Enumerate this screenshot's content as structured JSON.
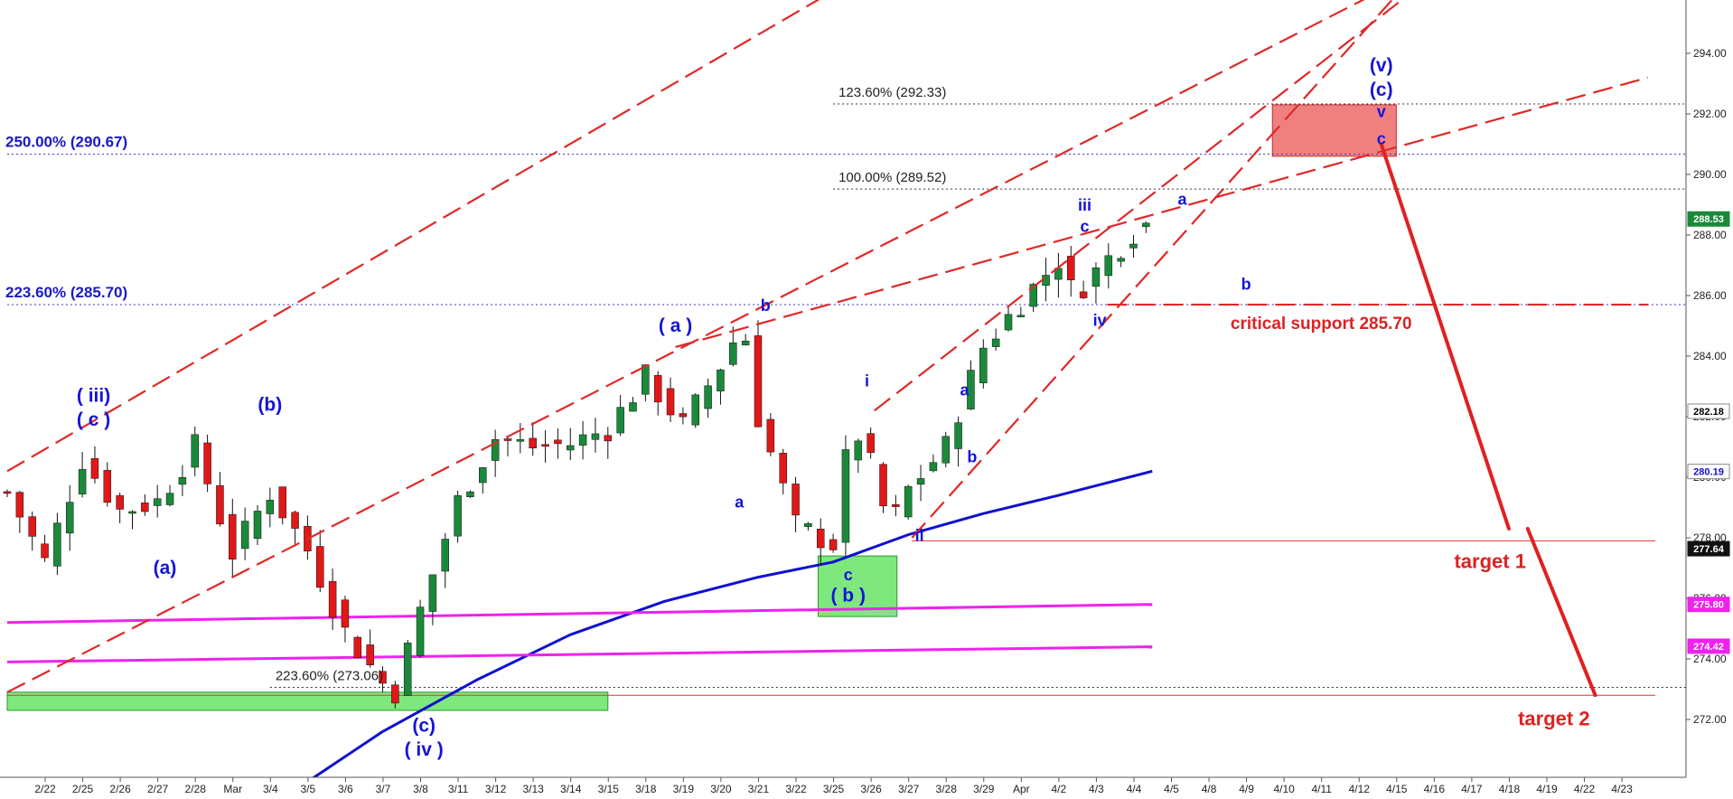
{
  "chart_data": {
    "type": "candlestick",
    "title": "",
    "xlabel": "",
    "ylabel": "",
    "ylim": [
      269.0,
      295.6
    ],
    "y_ticks": [
      272.0,
      274.0,
      276.0,
      278.0,
      280.0,
      282.0,
      284.0,
      286.0,
      288.0,
      290.0,
      292.0,
      294.0
    ],
    "y_tick_labels": [
      "272.00",
      "274.00",
      "276.00",
      "278.00",
      "280.00",
      "282.00",
      "284.00",
      "286.00",
      "288.00",
      "290.00",
      "292.00",
      "294.00"
    ],
    "x_tick_labels": [
      "2/22",
      "2/25",
      "2/26",
      "2/27",
      "2/28",
      "Mar",
      "3/4",
      "3/5",
      "3/6",
      "3/7",
      "3/8",
      "3/11",
      "3/12",
      "3/13",
      "3/14",
      "3/15",
      "3/18",
      "3/19",
      "3/20",
      "3/21",
      "3/22",
      "3/25",
      "3/26",
      "3/27",
      "3/28",
      "3/29",
      "Apr",
      "4/2",
      "4/3",
      "4/4",
      "4/5",
      "4/8",
      "4/9",
      "4/10",
      "4/11",
      "4/12",
      "4/15",
      "4/16",
      "4/17",
      "4/18",
      "4/19",
      "4/22",
      "4/23"
    ],
    "price_path": [
      {
        "x": 0.0,
        "y": 279.5
      },
      {
        "x": 1.0,
        "y": 277.2
      },
      {
        "x": 2.0,
        "y": 280.6
      },
      {
        "x": 3.0,
        "y": 278.9
      },
      {
        "x": 4.0,
        "y": 279.2
      },
      {
        "x": 5.0,
        "y": 281.0
      },
      {
        "x": 6.0,
        "y": 277.5
      },
      {
        "x": 7.0,
        "y": 279.5
      },
      {
        "x": 8.0,
        "y": 277.6
      },
      {
        "x": 9.0,
        "y": 274.9
      },
      {
        "x": 10.0,
        "y": 273.2
      },
      {
        "x": 10.3,
        "y": 272.8
      },
      {
        "x": 11.0,
        "y": 275.6
      },
      {
        "x": 12.0,
        "y": 279.2
      },
      {
        "x": 13.0,
        "y": 281.3
      },
      {
        "x": 14.0,
        "y": 281.0
      },
      {
        "x": 15.0,
        "y": 281.1
      },
      {
        "x": 16.0,
        "y": 281.6
      },
      {
        "x": 17.0,
        "y": 283.3
      },
      {
        "x": 18.0,
        "y": 281.7
      },
      {
        "x": 19.0,
        "y": 283.7
      },
      {
        "x": 19.6,
        "y": 285.1
      },
      {
        "x": 20.0,
        "y": 282.0
      },
      {
        "x": 21.0,
        "y": 278.4
      },
      {
        "x": 22.0,
        "y": 277.8
      },
      {
        "x": 22.5,
        "y": 281.9
      },
      {
        "x": 23.0,
        "y": 280.4
      },
      {
        "x": 23.5,
        "y": 278.3
      },
      {
        "x": 24.0,
        "y": 279.6
      },
      {
        "x": 25.0,
        "y": 281.0
      },
      {
        "x": 25.3,
        "y": 282.1
      },
      {
        "x": 26.0,
        "y": 284.3
      },
      {
        "x": 27.0,
        "y": 285.8
      },
      {
        "x": 28.0,
        "y": 287.2
      },
      {
        "x": 28.4,
        "y": 286.0
      },
      {
        "x": 29.0,
        "y": 286.8
      },
      {
        "x": 30.0,
        "y": 288.1
      },
      {
        "x": 30.5,
        "y": 288.5
      }
    ],
    "series": [
      {
        "name": "",
        "color": "#1010d0",
        "points": [
          {
            "x": 7.1,
            "y": 269.2
          },
          {
            "x": 10.0,
            "y": 271.6
          },
          {
            "x": 12.5,
            "y": 273.3
          },
          {
            "x": 15.0,
            "y": 274.8
          },
          {
            "x": 17.5,
            "y": 275.9
          },
          {
            "x": 20.0,
            "y": 276.7
          },
          {
            "x": 22.0,
            "y": 277.2
          },
          {
            "x": 24.0,
            "y": 278.1
          },
          {
            "x": 26.0,
            "y": 278.8
          },
          {
            "x": 28.0,
            "y": 279.4
          },
          {
            "x": 30.5,
            "y": 280.2
          }
        ]
      },
      {
        "name": "",
        "color": "#ee22ee",
        "points": [
          {
            "x": 0.0,
            "y": 275.2
          },
          {
            "x": 30.5,
            "y": 275.8
          }
        ]
      },
      {
        "name": "",
        "color": "#ee22ee",
        "points": [
          {
            "x": 0.0,
            "y": 273.9
          },
          {
            "x": 30.5,
            "y": 274.4
          }
        ]
      }
    ],
    "price_labels": [
      {
        "value": 288.53,
        "text": "288.53",
        "bg": "#1a8a3a",
        "fg": "#ffffff"
      },
      {
        "value": 282.18,
        "text": "282.18",
        "bg": "#ffffff",
        "fg": "#000000"
      },
      {
        "value": 280.19,
        "text": "280.19",
        "bg": "#ffffff",
        "fg": "#1010d0"
      },
      {
        "value": 277.64,
        "text": "277.64",
        "bg": "#111111",
        "fg": "#ffffff"
      },
      {
        "value": 275.8,
        "text": "275.80",
        "bg": "#ee22ee",
        "fg": "#ffffff"
      },
      {
        "value": 274.42,
        "text": "274.42",
        "bg": "#ee22ee",
        "fg": "#ffffff"
      }
    ],
    "fib_levels": [
      {
        "text": "250.00% (290.67)",
        "value": 290.67,
        "color": "#1a1ac8",
        "x_from": 0.0
      },
      {
        "text": "223.60% (285.70)",
        "value": 285.7,
        "color": "#1a1ac8",
        "x_from": 0.0
      },
      {
        "text": "123.60% (292.33)",
        "value": 292.33,
        "color": "#222222",
        "x_from": 22.0
      },
      {
        "text": "100.00% (289.52)",
        "value": 289.52,
        "color": "#222222",
        "x_from": 22.0
      },
      {
        "text": "223.60% (273.06)",
        "value": 273.06,
        "color": "#222222",
        "x_from": 7.0
      }
    ],
    "wave_labels": [
      {
        "text": "( iii)",
        "x": 2.3,
        "y": 282.5
      },
      {
        "text": "( c )",
        "x": 2.3,
        "y": 281.7
      },
      {
        "text": "(b)",
        "x": 7.0,
        "y": 282.2
      },
      {
        "text": "(a)",
        "x": 4.2,
        "y": 276.8
      },
      {
        "text": "( a )",
        "x": 17.8,
        "y": 284.8
      },
      {
        "text": "b",
        "x": 20.2,
        "y": 285.5
      },
      {
        "text": "a",
        "x": 19.5,
        "y": 279.0
      },
      {
        "text": "i",
        "x": 22.9,
        "y": 283.0
      },
      {
        "text": "c",
        "x": 22.4,
        "y": 276.6
      },
      {
        "text": "( b )",
        "x": 22.4,
        "y": 275.9
      },
      {
        "text": "ii",
        "x": 24.3,
        "y": 277.9
      },
      {
        "text": "a",
        "x": 25.5,
        "y": 282.7
      },
      {
        "text": "b",
        "x": 25.7,
        "y": 280.5
      },
      {
        "text": "iii",
        "x": 28.7,
        "y": 288.8
      },
      {
        "text": "c",
        "x": 28.7,
        "y": 288.1
      },
      {
        "text": "iv",
        "x": 29.1,
        "y": 285.0
      },
      {
        "text": "a",
        "x": 31.3,
        "y": 289.0
      },
      {
        "text": "b",
        "x": 33.0,
        "y": 286.2
      },
      {
        "text": "(v)",
        "x": 36.6,
        "y": 293.4
      },
      {
        "text": "(c)",
        "x": 36.6,
        "y": 292.6
      },
      {
        "text": "v",
        "x": 36.6,
        "y": 291.9
      },
      {
        "text": "c",
        "x": 36.6,
        "y": 291.0
      },
      {
        "text": "(c)",
        "x": 11.1,
        "y": 271.6
      },
      {
        "text": "( iv )",
        "x": 11.1,
        "y": 270.8
      }
    ],
    "annotations": [
      {
        "text": "critical support 285.70",
        "x": 35.0,
        "y": 284.9,
        "color": "#dd2222"
      },
      {
        "text": "target 1",
        "x": 39.5,
        "y": 277.0,
        "color": "#dd2222"
      },
      {
        "text": "target 2",
        "x": 41.2,
        "y": 271.8,
        "color": "#dd2222"
      }
    ],
    "target_lines": [
      {
        "value": 277.9,
        "x_from": 24.1,
        "x_to": 43.9
      },
      {
        "value": 272.8,
        "x_from": 0.0,
        "x_to": 43.9
      }
    ],
    "channel_lines": [
      {
        "from": {
          "x": 0.0,
          "y": 280.2
        },
        "to": {
          "x": 22.2,
          "y": 296.2
        }
      },
      {
        "from": {
          "x": 0.0,
          "y": 272.9
        },
        "to": {
          "x": 36.8,
          "y": 296.2
        }
      },
      {
        "from": {
          "x": 17.8,
          "y": 284.3
        },
        "to": {
          "x": 43.7,
          "y": 293.2
        }
      },
      {
        "from": {
          "x": 23.1,
          "y": 282.2
        },
        "to": {
          "x": 37.6,
          "y": 296.2
        }
      },
      {
        "from": {
          "x": 24.1,
          "y": 278.0
        },
        "to": {
          "x": 37.2,
          "y": 296.2
        }
      },
      {
        "from": {
          "x": 29.3,
          "y": 285.7
        },
        "to": {
          "x": 43.7,
          "y": 285.7
        }
      }
    ],
    "projection_lines": [
      {
        "from": {
          "x": 36.6,
          "y": 291.0
        },
        "to": {
          "x": 40.0,
          "y": 278.3
        }
      },
      {
        "from": {
          "x": 40.5,
          "y": 278.3
        },
        "to": {
          "x": 42.3,
          "y": 272.8
        }
      }
    ],
    "zones": [
      {
        "x0": 0.0,
        "x1": 16.0,
        "y0": 272.3,
        "y1": 272.9,
        "color": "green"
      },
      {
        "x0": 21.6,
        "x1": 23.7,
        "y0": 275.4,
        "y1": 277.4,
        "color": "green"
      },
      {
        "x0": 33.7,
        "x1": 37.0,
        "y0": 290.6,
        "y1": 292.3,
        "color": "red"
      }
    ]
  }
}
